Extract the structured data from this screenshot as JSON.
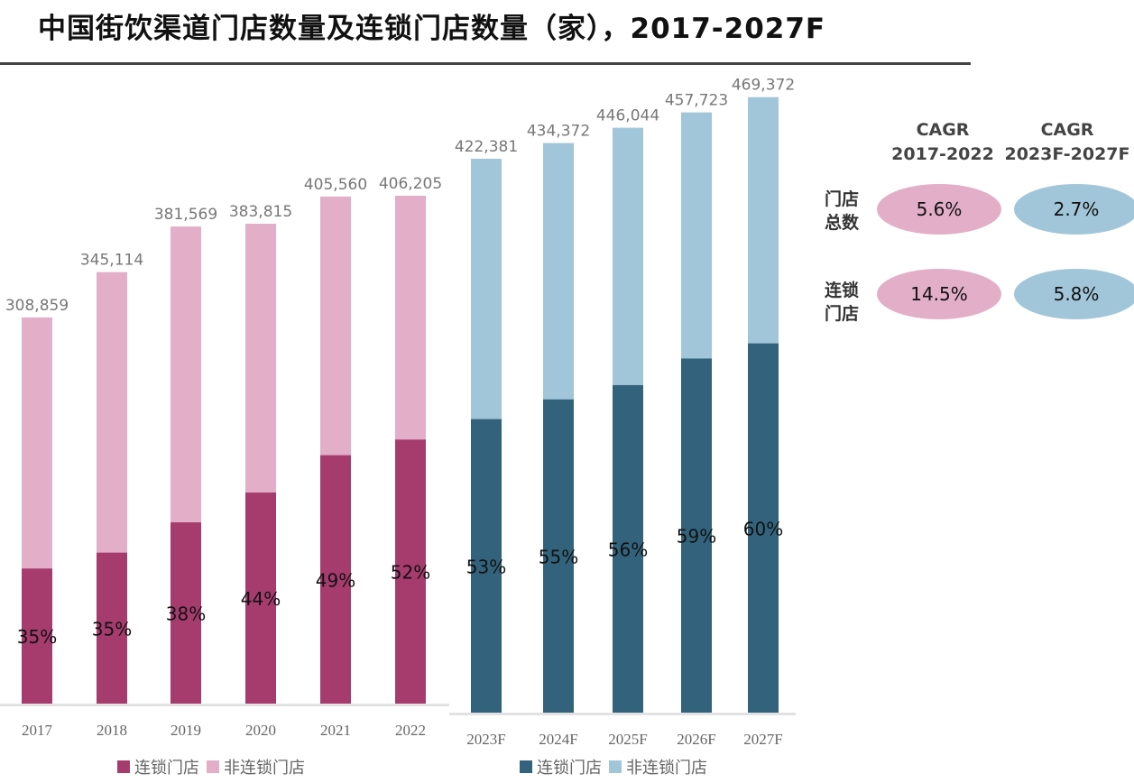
{
  "title": "中国街饮渠道门店数量及连锁门店数量（家），2017-2027F",
  "chart_data": [
    {
      "type": "bar",
      "stacked": true,
      "categories": [
        "2017",
        "2018",
        "2019",
        "2020",
        "2021",
        "2022"
      ],
      "totals": [
        308859,
        345114,
        381569,
        383815,
        405560,
        406205
      ],
      "total_labels": [
        "308,859",
        "345,114",
        "381,569",
        "383,815",
        "405,560",
        "406,205"
      ],
      "chain_share": [
        35,
        35,
        38,
        44,
        49,
        52
      ],
      "chain_share_labels": [
        "35%",
        "35%",
        "38%",
        "44%",
        "49%",
        "52%"
      ],
      "series": [
        {
          "name": "连锁门店",
          "color": "#a63c6e"
        },
        {
          "name": "非连锁门店",
          "color": "#e2aec8"
        }
      ],
      "legend": "bottom"
    },
    {
      "type": "bar",
      "stacked": true,
      "categories": [
        "2023F",
        "2024F",
        "2025F",
        "2026F",
        "2027F"
      ],
      "totals": [
        422381,
        434372,
        446044,
        457723,
        469372
      ],
      "total_labels": [
        "422,381",
        "434,372",
        "446,044",
        "457,723",
        "469,372"
      ],
      "chain_share": [
        53,
        55,
        56,
        59,
        60
      ],
      "chain_share_labels": [
        "53%",
        "55%",
        "56%",
        "59%",
        "60%"
      ],
      "series": [
        {
          "name": "连锁门店",
          "color": "#33637c"
        },
        {
          "name": "非连锁门店",
          "color": "#a2c6d9"
        }
      ],
      "legend": "bottom"
    }
  ],
  "cagr": {
    "headers": [
      [
        "CAGR",
        "2017-2022"
      ],
      [
        "CAGR",
        "2023F-2027F"
      ]
    ],
    "rows": [
      {
        "label": [
          "门店",
          "总数"
        ],
        "values": [
          "5.6%",
          "2.7%"
        ]
      },
      {
        "label": [
          "连锁",
          "门店"
        ],
        "values": [
          "14.5%",
          "5.8%"
        ]
      }
    ],
    "colors": [
      "#e2aec8",
      "#a2c6d9"
    ]
  }
}
